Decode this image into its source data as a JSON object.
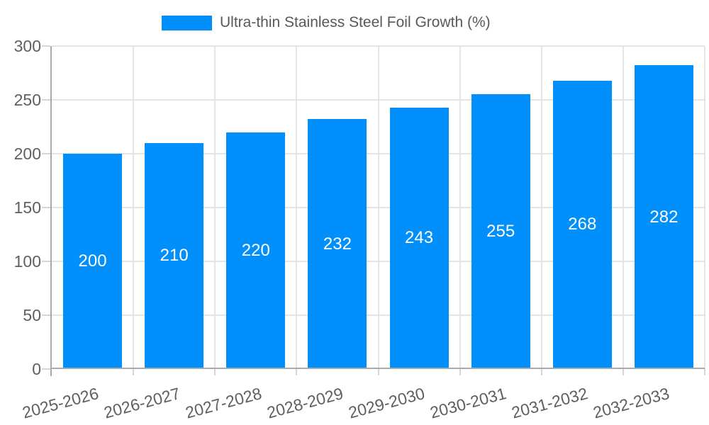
{
  "legend": {
    "items": [
      {
        "label": "Ultra-thin Stainless Steel Foil Growth (%)",
        "color": "#018ffb"
      }
    ]
  },
  "chart_data": {
    "type": "bar",
    "categories": [
      "2025-2026",
      "2026-2027",
      "2027-2028",
      "2028-2029",
      "2029-2030",
      "2030-2031",
      "2031-2032",
      "2032-2033"
    ],
    "series": [
      {
        "name": "Ultra-thin Stainless Steel Foil Growth (%)",
        "values": [
          200,
          210,
          220,
          232,
          243,
          255,
          268,
          282
        ],
        "color": "#018ffb"
      }
    ],
    "xlabel": "",
    "ylabel": "",
    "ylim": [
      0,
      300
    ],
    "yticks": [
      0,
      50,
      100,
      150,
      200,
      250,
      300
    ],
    "grid": true,
    "legend_position": "top",
    "value_labels_position": "inside-center",
    "colors": {
      "bar": "#018ffb",
      "value_label": "#ffffff",
      "axis_text": "#5f5f5f",
      "legend_text": "#56595c",
      "gridline": "#e5e5e5",
      "axis_line": "#a9a9a9",
      "tick": "#d6d6d6",
      "background": "#ffffff"
    }
  }
}
